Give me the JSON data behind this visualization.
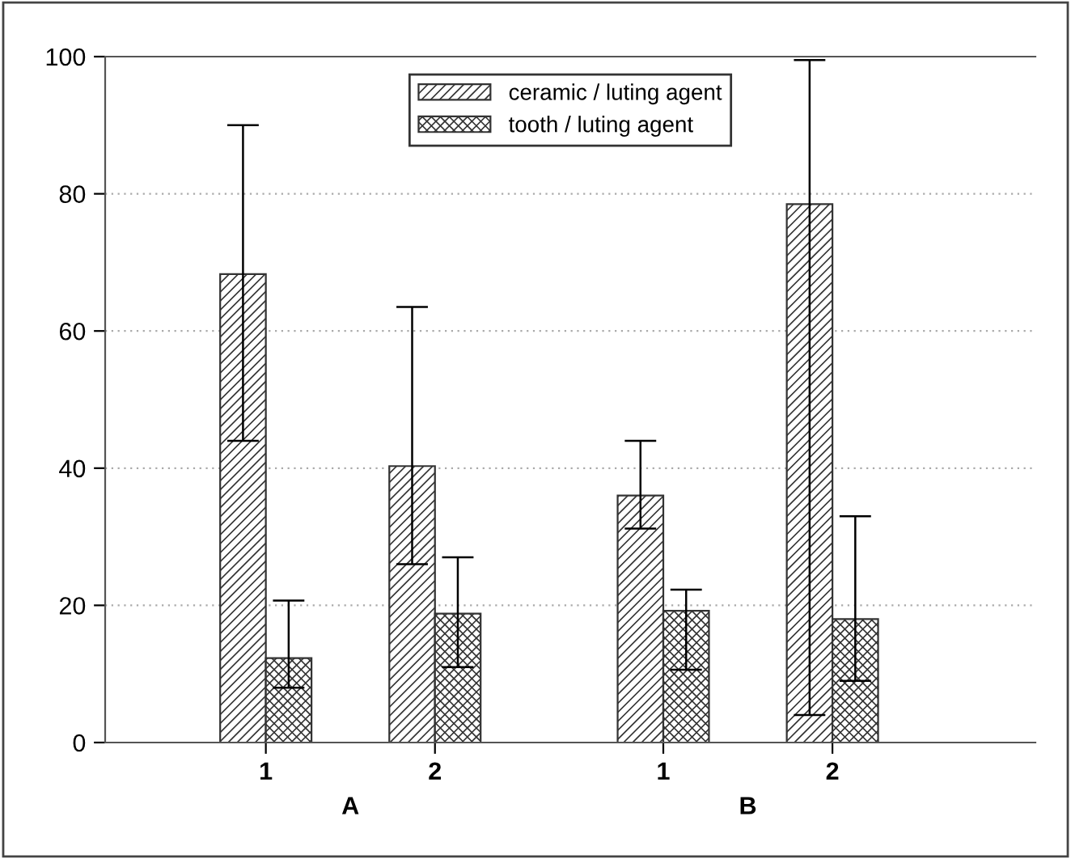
{
  "chart_data": {
    "type": "bar",
    "categories": [
      "1",
      "2",
      "1",
      "2"
    ],
    "series": [
      {
        "name": "ceramic / luting agent",
        "color": "#333333",
        "values": [
          68.3,
          40.3,
          36,
          78.5
        ],
        "errors": [
          [
            44,
            90
          ],
          [
            26,
            63.5
          ],
          [
            31.2,
            44
          ],
          [
            4,
            99.5
          ]
        ]
      },
      {
        "name": "tooth / luting agent",
        "color": "#333333",
        "values": [
          12.3,
          18.8,
          19.2,
          18
        ],
        "errors": [
          [
            8,
            20.7
          ],
          [
            11,
            27
          ],
          [
            10.6,
            22.3
          ],
          [
            9,
            33
          ]
        ]
      }
    ],
    "annotations": [
      "A",
      "B"
    ],
    "ylim": [
      0,
      100
    ],
    "yticks": [
      0,
      20,
      40,
      60,
      80,
      100
    ],
    "grid": "y",
    "legend": "top"
  }
}
